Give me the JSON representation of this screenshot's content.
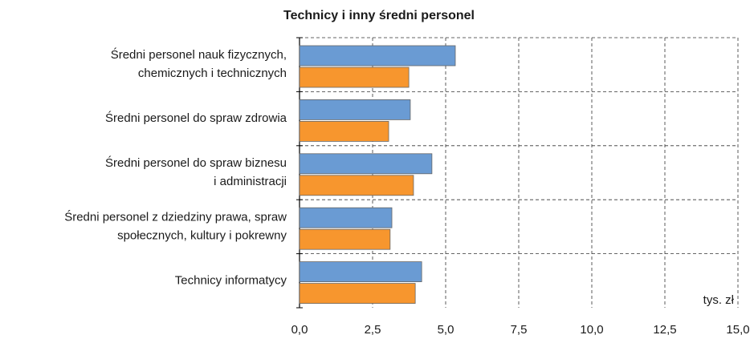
{
  "chart_data": {
    "type": "barh",
    "title": "Technicy i inny średni personel",
    "categories": [
      [
        "Średni personel nauk fizycznych,",
        "chemicznych i technicznych"
      ],
      [
        "Średni personel do spraw zdrowia"
      ],
      [
        "Średni personel do spraw biznesu",
        "i administracji"
      ],
      [
        "Średni personel z dziedziny prawa, spraw",
        "społecznych, kultury i pokrewny"
      ],
      [
        "Technicy informatycy"
      ]
    ],
    "series": [
      {
        "color": "#6a9bd3",
        "values": [
          5.33,
          3.79,
          4.53,
          3.16,
          4.18
        ]
      },
      {
        "color": "#f7962e",
        "values": [
          3.74,
          3.05,
          3.9,
          3.1,
          3.96
        ]
      }
    ],
    "xlim": [
      0,
      15
    ],
    "xticks": [
      {
        "value": 0,
        "label": "0,0"
      },
      {
        "value": 2.5,
        "label": "2,5"
      },
      {
        "value": 5,
        "label": "5,0"
      },
      {
        "value": 7.5,
        "label": "7,5"
      },
      {
        "value": 10,
        "label": "10,0"
      },
      {
        "value": 12.5,
        "label": "12,5"
      },
      {
        "value": 15,
        "label": "15,0"
      }
    ],
    "unit_label": "tys. zł",
    "grid": true
  }
}
